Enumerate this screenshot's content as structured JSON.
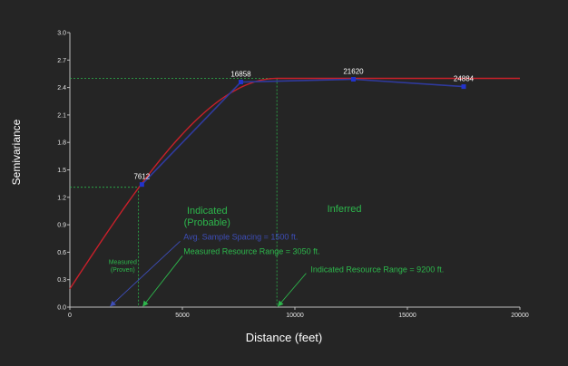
{
  "chart_data": {
    "type": "line",
    "title": "",
    "xlabel": "Distance (feet)",
    "ylabel": "Semivariance",
    "xlim": [
      0,
      20000
    ],
    "ylim": [
      0,
      3.0
    ],
    "x_ticks": [
      "0",
      "5000",
      "10000",
      "15000",
      "20000"
    ],
    "y_ticks": [
      "0.0",
      "0.3",
      "0.6",
      "0.9",
      "1.2",
      "1.5",
      "1.8",
      "2.1",
      "2.4",
      "2.7",
      "3.0"
    ],
    "grid": false,
    "legend": "none",
    "series": [
      {
        "role": "experimental",
        "color": "#2f3a9e",
        "points": [
          {
            "x": 3200,
            "y": 1.34,
            "label": "7612"
          },
          {
            "x": 7600,
            "y": 2.46,
            "label": "16858"
          },
          {
            "x": 12600,
            "y": 2.49,
            "label": "21620"
          },
          {
            "x": 17500,
            "y": 2.41,
            "label": "24884"
          }
        ]
      },
      {
        "role": "model",
        "color": "#c8202a",
        "nugget": 0.2,
        "sill": 2.5,
        "range": 9200,
        "x_end": 20000
      }
    ],
    "reference_lines": {
      "color": "#2db84c",
      "measured": {
        "x": 3050,
        "y": 1.31
      },
      "indicated": {
        "x": 9200,
        "y": 2.5
      }
    },
    "zones": [
      {
        "lines": [
          "Measured",
          "(Proven)"
        ],
        "x": 2350,
        "y": 0.47,
        "size": 7
      },
      {
        "lines": [
          "Indicated",
          "(Probable)"
        ],
        "x": 6100,
        "y": 1.02,
        "size": 11
      },
      {
        "lines": [
          "Inferred"
        ],
        "x": 12200,
        "y": 1.04,
        "size": 11
      }
    ],
    "annotations": [
      {
        "text": "Avg. Sample Spacing = 1500 ft.",
        "color": "#3d4db8",
        "text_x": 5050,
        "text_y": 0.74,
        "arrow_to_x": 1800,
        "arrow_to_y": 0.01,
        "arrow_from_x": 4900,
        "arrow_from_y": 0.72
      },
      {
        "text": "Measured Resource Range = 3050 ft.",
        "color": "#2db84c",
        "text_x": 5050,
        "text_y": 0.58,
        "arrow_to_x": 3250,
        "arrow_to_y": 0.01,
        "arrow_from_x": 5000,
        "arrow_from_y": 0.56
      },
      {
        "text": "Indicated Resource Range = 9200 ft.",
        "color": "#2db84c",
        "text_x": 10700,
        "text_y": 0.38,
        "arrow_to_x": 9250,
        "arrow_to_y": 0.01,
        "arrow_from_x": 10500,
        "arrow_from_y": 0.37
      }
    ]
  }
}
